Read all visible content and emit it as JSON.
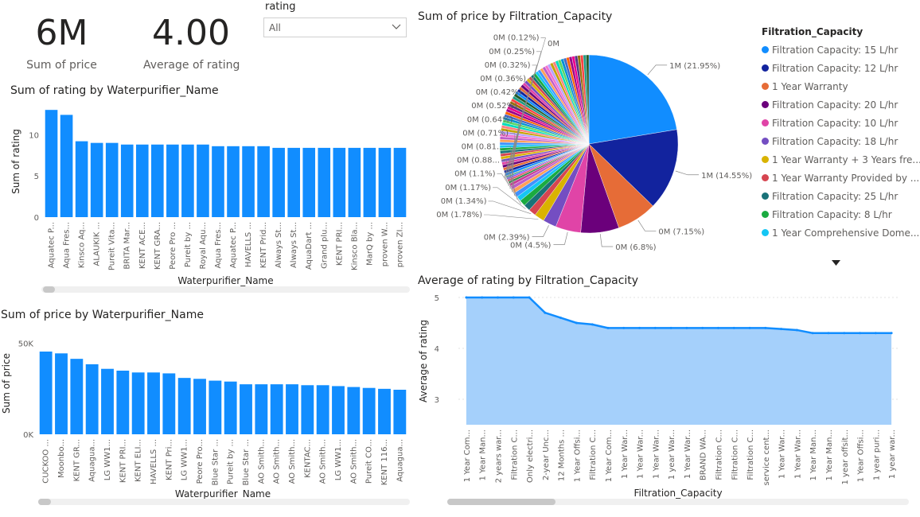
{
  "cards": [
    {
      "value": "6M",
      "label": "Sum of price"
    },
    {
      "value": "4.00",
      "label": "Average of rating"
    }
  ],
  "slicer": {
    "label": "rating",
    "value": "All"
  },
  "colors": {
    "bar": "#118dff",
    "area_fill": "#a5d0fb",
    "area_line": "#118dff",
    "axis_text": "#605e5c"
  },
  "chart_data": [
    {
      "id": "rating_by_name",
      "type": "bar",
      "title": "Sum of rating by Waterpurifier_Name",
      "xlabel": "Waterpurifier_Name",
      "ylabel": "Sum of rating",
      "ylim": [
        0,
        13.5
      ],
      "yticks": [
        0,
        5,
        10
      ],
      "categories": [
        "Aquatec P...",
        "Aqua Fres...",
        "Kinsco Aq...",
        "ALAUKIK ...",
        "Pureit Vita...",
        "BRITA Mar...",
        "KENT ACE...",
        "KENT GRA...",
        "Peore Pro ...",
        "Pureit by ...",
        "Royal Aqu...",
        "Aqua Fres...",
        "Aquatec P...",
        "HAVELLS ...",
        "KENT Prid...",
        "Always St...",
        "Always St...",
        "AquaDart ...",
        "Grand plu...",
        "KENT PRI...",
        "Kinsco Bla...",
        "MarQ by ...",
        "proven W...",
        "proven ZI..."
      ],
      "values": [
        13,
        12.4,
        9.2,
        9.0,
        9.0,
        8.8,
        8.8,
        8.8,
        8.8,
        8.8,
        8.8,
        8.6,
        8.6,
        8.6,
        8.6,
        8.4,
        8.4,
        8.4,
        8.4,
        8.4,
        8.4,
        8.4,
        8.4,
        8.4
      ],
      "grid": false
    },
    {
      "id": "price_by_name",
      "type": "bar",
      "title": "Sum of price by Waterpurifier_Name",
      "xlabel": "Waterpurifier_Name",
      "ylabel": "Sum of price",
      "ylim": [
        0,
        56000
      ],
      "yticks": [
        0,
        50000
      ],
      "ytick_labels": [
        "0K",
        "50K"
      ],
      "categories": [
        "CUCKOO ...",
        "Moonbo...",
        "KENT GR...",
        "Aquagua...",
        "LG WW1...",
        "KENT PRI...",
        "KENT ELI...",
        "HAVELLS ...",
        "KENT Pri...",
        "LG WW1...",
        "Peore Pro...",
        "Blue Star ...",
        "Pureit by ...",
        "Blue Star ...",
        "AO Smith...",
        "AO Smith...",
        "AO Smith...",
        "KENTAC...",
        "AO Smith...",
        "LG WW1...",
        "AO Smith...",
        "Pureit CO...",
        "KENT 116...",
        "Aquagua..."
      ],
      "values": [
        45500,
        44500,
        41500,
        38500,
        36000,
        35000,
        34000,
        34000,
        33500,
        31000,
        30500,
        29500,
        29000,
        27500,
        27500,
        27500,
        27500,
        27000,
        27000,
        26500,
        26000,
        25500,
        25000,
        24500
      ],
      "grid": false
    },
    {
      "id": "price_by_capacity",
      "type": "pie",
      "title": "Sum of price by Filtration_Capacity",
      "legend_title": "Filtration_Capacity",
      "legend_position": "right",
      "major_slices": [
        {
          "name": "Filtration Capacity: 15 L/hr",
          "percent": 21.95,
          "label": "1M (21.95%)",
          "color": "#118dff"
        },
        {
          "name": "Filtration Capacity: 12 L/hr",
          "percent": 14.55,
          "label": "1M (14.55%)",
          "color": "#12239e"
        },
        {
          "name": "1 Year Warranty",
          "percent": 7.15,
          "label": "0M (7.15%)",
          "color": "#e66c37"
        },
        {
          "name": "Filtration Capacity: 20 L/hr",
          "percent": 6.8,
          "label": "0M (6.8%)",
          "color": "#6b007b"
        },
        {
          "name": "Filtration Capacity: 10 L/hr",
          "percent": 4.5,
          "label": "0M (4.5%)",
          "color": "#e044a7"
        },
        {
          "name": "Filtration Capacity: 18 L/hr",
          "percent": 2.39,
          "label": "0M (2.39%)",
          "color": "#744ec2"
        },
        {
          "name": "1 Year Warranty + 3 Years fre...",
          "percent": 1.78,
          "label": "0M (1.78%)",
          "color": "#d9b300"
        },
        {
          "name": "1 Year Warranty Provided by ...",
          "percent": 1.34,
          "label": "0M (1.34%)",
          "color": "#d64550"
        },
        {
          "name": "Filtration Capacity: 25 L/hr",
          "percent": 1.17,
          "label": "0M (1.17%)",
          "color": "#197278"
        },
        {
          "name": "Filtration Capacity: 8 L/hr",
          "percent": 1.1,
          "label": "0M (1.1%)",
          "color": "#1aab40"
        },
        {
          "name": "1 Year Comprehensive Dome...",
          "percent": 0.88,
          "label": "0M (0.88...",
          "color": "#15c6f4"
        },
        {
          "name": "",
          "percent": 0.81,
          "label": "0M (0.81...",
          "color": "#4092ff"
        },
        {
          "name": "",
          "percent": 0.71,
          "label": "0M (0.71%)",
          "color": "#ffa058"
        },
        {
          "name": "",
          "percent": 0.64,
          "label": "0M (0.64%)",
          "color": "#be5dc9"
        },
        {
          "name": "",
          "percent": 0.52,
          "label": "0M (0.52%)",
          "color": "#c83d95"
        },
        {
          "name": "",
          "percent": 0.42,
          "label": "0M (0.42%)",
          "color": "#3a8a4e"
        },
        {
          "name": "",
          "percent": 0.36,
          "label": "0M (0.36%)",
          "color": "#e64e66"
        },
        {
          "name": "",
          "percent": 0.32,
          "label": "0M (0.32%)",
          "color": "#8a4fff"
        },
        {
          "name": "",
          "percent": 0.25,
          "label": "0M (0.25%)",
          "color": "#0e9aa7"
        },
        {
          "name": "",
          "percent": 0.12,
          "label": "0M (0.12%)",
          "color": "#7b6e00"
        }
      ],
      "extra_label": "0M",
      "rest_percent": 30.24
    },
    {
      "id": "rating_by_capacity",
      "type": "area",
      "title": "Average of rating by Filtration_Capacity",
      "xlabel": "Filtration_Capacity",
      "ylabel": "Average of rating",
      "ylim": [
        2.5,
        5.0
      ],
      "yticks": [
        3,
        4,
        5
      ],
      "categories": [
        "1 Year Com...",
        "1 Year Man...",
        "2 years war...",
        "Filtration C...",
        "Only electri...",
        "2-year Unc...",
        "12 Months ...",
        "1 Year Offsi...",
        "Filtration C...",
        "1 Year Com...",
        "1 Year War...",
        "1 Year War...",
        "1 Year War...",
        "1 year War...",
        "1 Year War...",
        "BRAND WA...",
        "Filtration C...",
        "Filtration C...",
        "Filtration C...",
        "service cent...",
        "1 Year War...",
        "1 Year War...",
        "1 Year Man...",
        "1 Year Man...",
        "1 year offsit...",
        "1 Year Offsi...",
        "1 year puri...",
        "1 year war..."
      ],
      "values": [
        5.0,
        5.0,
        5.0,
        5.0,
        5.0,
        4.7,
        4.6,
        4.5,
        4.47,
        4.4,
        4.4,
        4.4,
        4.4,
        4.4,
        4.4,
        4.4,
        4.4,
        4.4,
        4.4,
        4.4,
        4.38,
        4.36,
        4.3,
        4.3,
        4.3,
        4.3,
        4.3,
        4.3
      ],
      "grid": true
    }
  ],
  "legend_more_icon": "triangle-down-icon",
  "slicer_icon": "chevron-down-icon"
}
